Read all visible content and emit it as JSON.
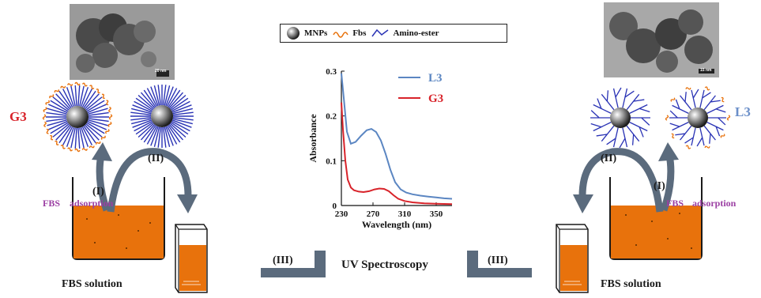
{
  "legend": {
    "items": [
      {
        "symbol": "sphere-icon",
        "label": "MNPs"
      },
      {
        "symbol": "fbs-squiggle-icon",
        "label": "Fbs"
      },
      {
        "symbol": "amino-ester-line-icon",
        "label": "Amino-ester"
      }
    ]
  },
  "left": {
    "tem_scale": "20 nm",
    "label": "G3",
    "step1": "(I)",
    "step2": "(II)",
    "fbs": "FBS",
    "adsorption": "adsorption",
    "solution": "FBS solution"
  },
  "right": {
    "tem_scale": "15 nm",
    "label": "L3",
    "step1": "(I)",
    "step2": "(II)",
    "fbs": "FBS",
    "adsorption": "adsorption",
    "solution": "FBS solution"
  },
  "center": {
    "step3_left": "(III)",
    "step3_right": "(III)",
    "uv_label": "UV Spectroscopy"
  },
  "colors": {
    "orange": "#e8720c",
    "blue_arm": "#2a33b5",
    "arrow": "#5b6b7d",
    "red": "#d8232a",
    "blue": "#6b8fc9",
    "purple": "#9b3fa3"
  },
  "chart_data": {
    "type": "line",
    "xlabel": "Wavelength (nm)",
    "ylabel": "Absorbance",
    "xlim": [
      230,
      370
    ],
    "ylim": [
      0,
      0.3
    ],
    "xticks": [
      230,
      270,
      310,
      350
    ],
    "yticks": [
      0,
      0.1,
      0.2,
      0.3
    ],
    "grid": false,
    "legend_position": "top-right",
    "series": [
      {
        "name": "L3",
        "color": "#5b86c2",
        "x": [
          230,
          233,
          237,
          242,
          248,
          255,
          262,
          268,
          274,
          280,
          286,
          292,
          298,
          305,
          312,
          320,
          330,
          340,
          350,
          360,
          370
        ],
        "y": [
          0.295,
          0.24,
          0.165,
          0.138,
          0.142,
          0.156,
          0.168,
          0.171,
          0.164,
          0.145,
          0.115,
          0.08,
          0.052,
          0.036,
          0.029,
          0.025,
          0.022,
          0.02,
          0.018,
          0.016,
          0.015
        ]
      },
      {
        "name": "G3",
        "color": "#d8232a",
        "x": [
          230,
          232,
          235,
          238,
          242,
          246,
          252,
          258,
          265,
          272,
          278,
          284,
          290,
          296,
          302,
          310,
          320,
          335,
          350,
          370
        ],
        "y": [
          0.23,
          0.17,
          0.1,
          0.058,
          0.04,
          0.034,
          0.031,
          0.03,
          0.032,
          0.036,
          0.038,
          0.037,
          0.032,
          0.023,
          0.015,
          0.01,
          0.007,
          0.005,
          0.004,
          0.003
        ]
      }
    ]
  }
}
